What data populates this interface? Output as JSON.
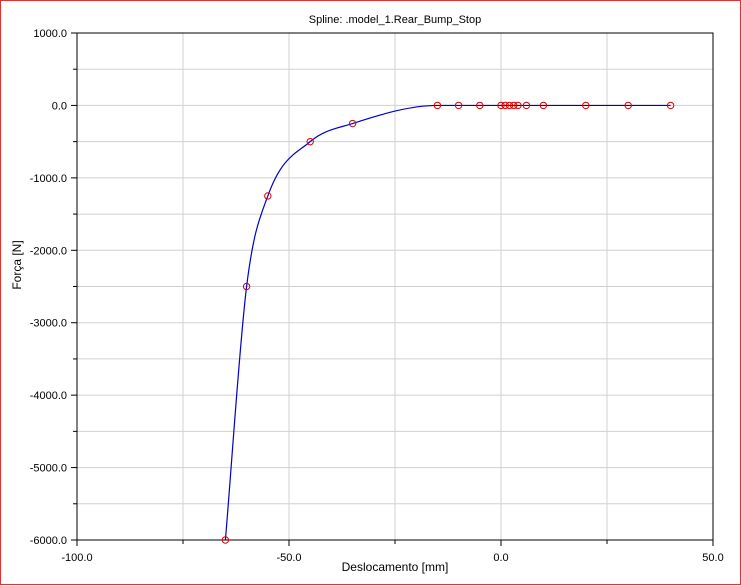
{
  "chart_data": {
    "type": "line",
    "title": "Spline: .model_1.Rear_Bump_Stop",
    "xlabel": "Deslocamento [mm]",
    "ylabel": "Força [N]",
    "xlim": [
      -100,
      50
    ],
    "ylim": [
      -6000,
      1000
    ],
    "x_ticks": [
      -100,
      -50,
      0,
      50
    ],
    "x_tick_labels": [
      "-100.0",
      "-50.0",
      "0.0",
      "50.0"
    ],
    "y_ticks": [
      1000,
      0,
      -1000,
      -2000,
      -3000,
      -4000,
      -5000,
      -6000
    ],
    "y_tick_labels": [
      "1000.0",
      "0.0",
      "-1000.0",
      "-2000.0",
      "-3000.0",
      "-4000.0",
      "-5000.0",
      "-6000.0"
    ],
    "grid": true,
    "series": [
      {
        "line_color": "#0000cc",
        "marker_color": "#e00000",
        "x": [
          -65,
          -60,
          -55,
          -45,
          -35,
          -15,
          -10,
          -5,
          0,
          1,
          2,
          3,
          4,
          6,
          10,
          20,
          30,
          40
        ],
        "y": [
          -6000,
          -2500,
          -1250,
          -500,
          -250,
          0,
          0,
          0,
          0,
          0,
          0,
          0,
          0,
          0,
          0,
          0,
          0,
          0
        ]
      }
    ]
  }
}
